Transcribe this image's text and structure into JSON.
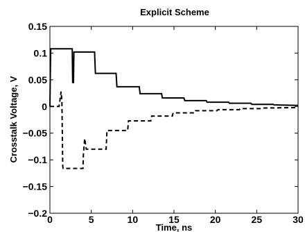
{
  "chart_data": {
    "type": "line",
    "title": "Explicit Scheme",
    "xlabel": "Time, ns",
    "ylabel": "Crosstalk Voltage, V",
    "xlim": [
      0,
      30
    ],
    "ylim": [
      -0.2,
      0.15
    ],
    "xticks": [
      0,
      5,
      10,
      15,
      20,
      25,
      30
    ],
    "yticks": [
      -0.2,
      -0.15,
      -0.1,
      -0.05,
      0,
      0.05,
      0.1,
      0.15
    ],
    "xtick_labels": [
      "0",
      "5",
      "10",
      "15",
      "20",
      "25",
      "30"
    ],
    "ytick_labels": [
      "−0.2",
      "−0.15",
      "−0.1",
      "−0.05",
      "0",
      "0.05",
      "0.1",
      "0.15"
    ],
    "grid": false,
    "series": [
      {
        "style": "solid",
        "color": "#000000",
        "x": [
          0,
          0.05,
          0.1,
          2.7,
          2.75,
          2.85,
          2.9,
          5.4,
          5.5,
          8.0,
          8.1,
          10.8,
          10.9,
          13.5,
          13.6,
          16.2,
          16.3,
          18.9,
          19.0,
          21.6,
          21.7,
          24.3,
          24.4,
          27.0,
          27.1,
          30
        ],
        "y": [
          0,
          0.06,
          0.108,
          0.108,
          0.045,
          0.045,
          0.102,
          0.102,
          0.062,
          0.062,
          0.037,
          0.037,
          0.024,
          0.024,
          0.016,
          0.016,
          0.011,
          0.011,
          0.008,
          0.008,
          0.006,
          0.006,
          0.004,
          0.004,
          0.003,
          0.002
        ]
      },
      {
        "style": "dashed",
        "color": "#000000",
        "x": [
          0,
          1.1,
          1.2,
          1.35,
          1.45,
          1.55,
          1.6,
          4.0,
          4.05,
          4.2,
          4.4,
          4.45,
          6.8,
          6.9,
          9.4,
          9.5,
          12.2,
          12.3,
          14.8,
          14.9,
          17.5,
          17.6,
          20.2,
          20.3,
          22.9,
          23.0,
          25.6,
          25.7,
          30
        ],
        "y": [
          0,
          0,
          0.01,
          0.028,
          0.01,
          -0.112,
          -0.116,
          -0.116,
          -0.09,
          -0.06,
          -0.08,
          -0.08,
          -0.08,
          -0.045,
          -0.045,
          -0.027,
          -0.027,
          -0.018,
          -0.018,
          -0.012,
          -0.012,
          -0.008,
          -0.008,
          -0.006,
          -0.006,
          -0.004,
          -0.004,
          -0.003,
          -0.002
        ]
      }
    ]
  }
}
